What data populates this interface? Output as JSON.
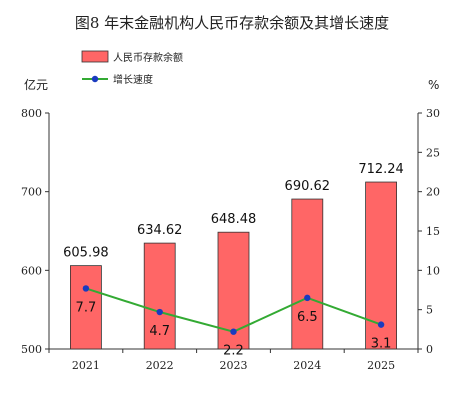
{
  "chart_data": {
    "type": "bar",
    "title": "图8 年末金融机构人民币存款余额及其增长速度",
    "categories": [
      "2021",
      "2022",
      "2023",
      "2024",
      "2025"
    ],
    "series": [
      {
        "name": "人民币存款余额",
        "kind": "bar",
        "axis": "left",
        "color": "#ff6666",
        "values": [
          605.98,
          634.62,
          648.48,
          690.62,
          712.24
        ],
        "labels": [
          "605.98",
          "634.62",
          "648.48",
          "690.62",
          "712.24"
        ]
      },
      {
        "name": "增长速度",
        "kind": "line",
        "axis": "right",
        "color": "#33aa33",
        "marker_color": "#1a3bbf",
        "values": [
          7.7,
          4.7,
          2.2,
          6.5,
          3.1
        ],
        "labels": [
          "7.7",
          "4.7",
          "2.2",
          "6.5",
          "3.1"
        ]
      }
    ],
    "y_left": {
      "unit": "亿元",
      "ylim": [
        500,
        800
      ],
      "ticks": [
        "500",
        "600",
        "700",
        "800"
      ]
    },
    "y_right": {
      "unit": "%",
      "ylim": [
        0,
        30
      ],
      "ticks": [
        "0",
        "5",
        "10",
        "15",
        "20",
        "25",
        "30"
      ]
    },
    "legend_position": "top-left",
    "grid": false
  }
}
